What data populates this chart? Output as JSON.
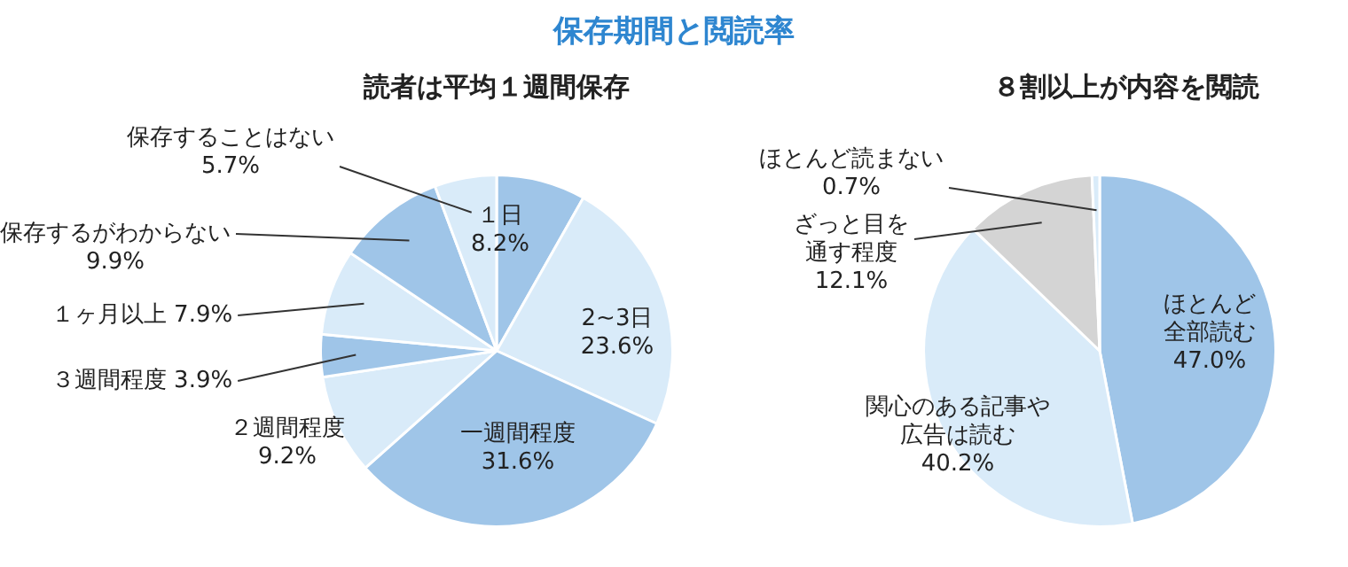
{
  "chart_data": [
    {
      "type": "pie",
      "title": "保存期間と閲読率",
      "subtitle": "読者は平均１週間保存",
      "categories": [
        "１日",
        "2~3日",
        "一週間程度",
        "２週間程度",
        "３週間程度",
        "１ヶ月以上",
        "保存するがわからない",
        "保存することはない"
      ],
      "values": [
        8.2,
        23.6,
        31.6,
        9.2,
        3.9,
        7.9,
        9.9,
        5.7
      ],
      "value_labels": [
        "8.2%",
        "23.6%",
        "31.6%",
        "9.2%",
        "3.9%",
        "7.9%",
        "9.9%",
        "5.7%"
      ],
      "colors": [
        "#9fc5e8",
        "#d9ebf9",
        "#9fc5e8",
        "#d9ebf9",
        "#9fc5e8",
        "#d9ebf9",
        "#9fc5e8",
        "#d9ebf9"
      ]
    },
    {
      "type": "pie",
      "title": "８割以上が内容を閲読",
      "categories": [
        "ほとんど全部読む",
        "関心のある記事や広告は読む",
        "ざっと目を通す程度",
        "ほとんど読まない"
      ],
      "values": [
        47.0,
        40.2,
        12.1,
        0.7
      ],
      "value_labels": [
        "47.0%",
        "40.2%",
        "12.1%",
        "0.7%"
      ],
      "colors": [
        "#9fc5e8",
        "#d9ebf9",
        "#d4d4d4",
        "#d9ebf9"
      ]
    }
  ]
}
